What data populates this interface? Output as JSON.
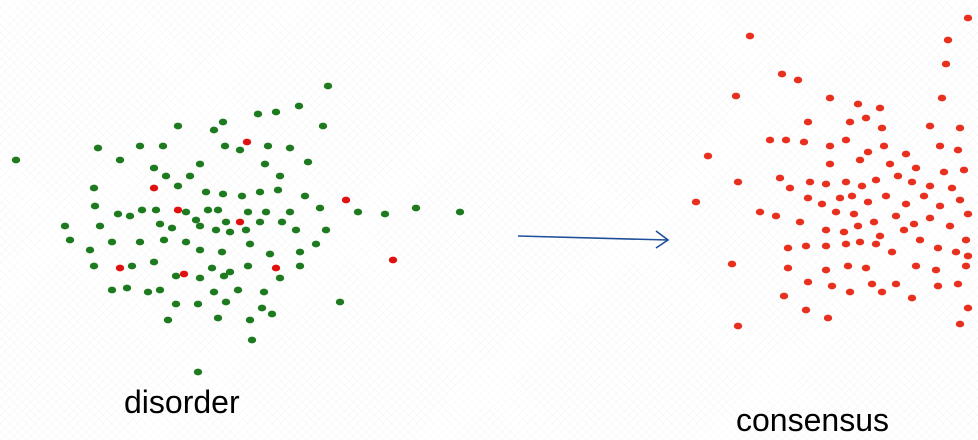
{
  "left_panel": {
    "label": "disorder",
    "majority_color": "#1e7a1e",
    "minority_color": "#e01010"
  },
  "right_panel": {
    "label": "consensus",
    "color": "#e8301e"
  },
  "arrow": {
    "color": "#1f4e9a",
    "icon": "right-arrow-icon"
  }
}
